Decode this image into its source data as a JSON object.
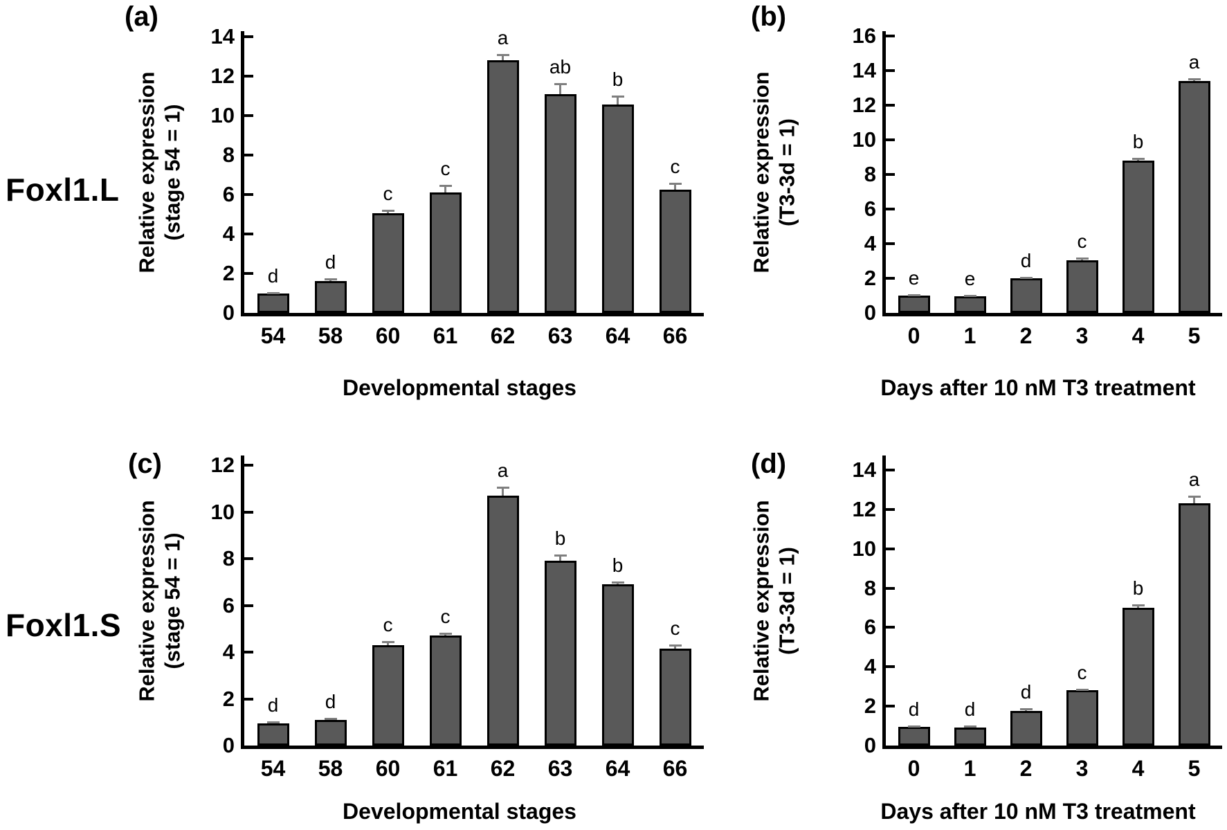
{
  "figure": {
    "row_labels": [
      "Foxl1.L",
      "Foxl1.S"
    ]
  },
  "style": {
    "background": "#ffffff",
    "bar_fill": "#595959",
    "bar_border": "#000000",
    "error_color": "#7f7f7f",
    "text_color": "#000000"
  },
  "chart_data": [
    {
      "id": "a",
      "panel_label": "(a)",
      "type": "bar",
      "ylabel_line1": "Relative expression",
      "ylabel_line2": "(stage 54 = 1)",
      "xlabel": "Developmental stages",
      "categories": [
        "54",
        "58",
        "60",
        "61",
        "62",
        "63",
        "64",
        "66"
      ],
      "values": [
        0.97,
        1.62,
        5.05,
        6.1,
        12.8,
        11.1,
        10.55,
        6.25
      ],
      "errors": [
        0.06,
        0.1,
        0.15,
        0.35,
        0.3,
        0.5,
        0.45,
        0.3
      ],
      "letters": [
        "d",
        "d",
        "c",
        "c",
        "a",
        "ab",
        "b",
        "c"
      ],
      "ylim": [
        0,
        14
      ],
      "ytick_step": 2,
      "grid": false,
      "legend": "none"
    },
    {
      "id": "b",
      "panel_label": "(b)",
      "type": "bar",
      "ylabel_line1": "Relative expression",
      "ylabel_line2": "(T3-3d = 1)",
      "xlabel": "Days after 10 nM T3 treatment",
      "categories": [
        "0",
        "1",
        "2",
        "3",
        "4",
        "5"
      ],
      "values": [
        1.0,
        0.95,
        2.0,
        3.05,
        8.8,
        13.4
      ],
      "errors": [
        0.05,
        0.05,
        0.05,
        0.1,
        0.12,
        0.12
      ],
      "letters": [
        "e",
        "e",
        "d",
        "c",
        "b",
        "a"
      ],
      "ylim": [
        0,
        16
      ],
      "ytick_step": 2,
      "grid": false,
      "legend": "none"
    },
    {
      "id": "c",
      "panel_label": "(c)",
      "type": "bar",
      "ylabel_line1": "Relative expression",
      "ylabel_line2": "(stage 54 = 1)",
      "xlabel": "Developmental stages",
      "categories": [
        "54",
        "58",
        "60",
        "61",
        "62",
        "63",
        "64",
        "66"
      ],
      "values": [
        0.95,
        1.1,
        4.3,
        4.7,
        10.7,
        7.9,
        6.9,
        4.15
      ],
      "errors": [
        0.05,
        0.06,
        0.13,
        0.1,
        0.35,
        0.25,
        0.1,
        0.15
      ],
      "letters": [
        "d",
        "d",
        "c",
        "c",
        "a",
        "b",
        "b",
        "c"
      ],
      "ylim": [
        0,
        12
      ],
      "ytick_step": 2,
      "grid": false,
      "legend": "none"
    },
    {
      "id": "d",
      "panel_label": "(d)",
      "type": "bar",
      "ylabel_line1": "Relative expression",
      "ylabel_line2": "(T3-3d = 1)",
      "xlabel": "Days after 10 nM T3 treatment",
      "categories": [
        "0",
        "1",
        "2",
        "3",
        "4",
        "5"
      ],
      "values": [
        0.95,
        0.92,
        1.75,
        2.8,
        7.0,
        12.3
      ],
      "errors": [
        0.05,
        0.06,
        0.1,
        0.06,
        0.15,
        0.35
      ],
      "letters": [
        "d",
        "d",
        "d",
        "c",
        "b",
        "a"
      ],
      "ylim": [
        0,
        14
      ],
      "ytick_step": 2,
      "grid": false,
      "legend": "none"
    }
  ]
}
